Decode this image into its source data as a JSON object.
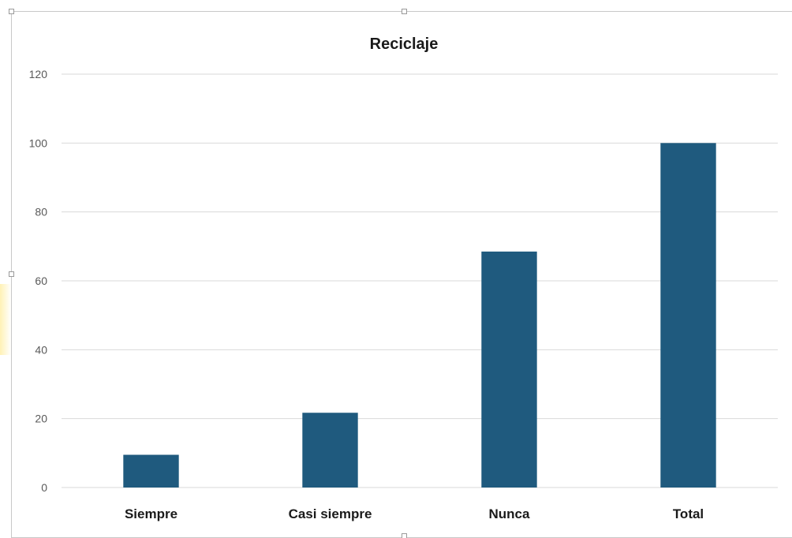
{
  "chart_data": {
    "type": "bar",
    "title": "Reciclaje",
    "categories": [
      "Siempre",
      "Casi siempre",
      "Nunca",
      "Total"
    ],
    "values": [
      9.5,
      21.7,
      68.5,
      100
    ],
    "ylim": [
      0,
      120
    ],
    "yticks": [
      "0",
      "20",
      "40",
      "60",
      "80",
      "100",
      "120"
    ],
    "xlabel": "",
    "ylabel": "",
    "grid": true,
    "legend": "none",
    "bar_color": "#1f5a7e"
  }
}
